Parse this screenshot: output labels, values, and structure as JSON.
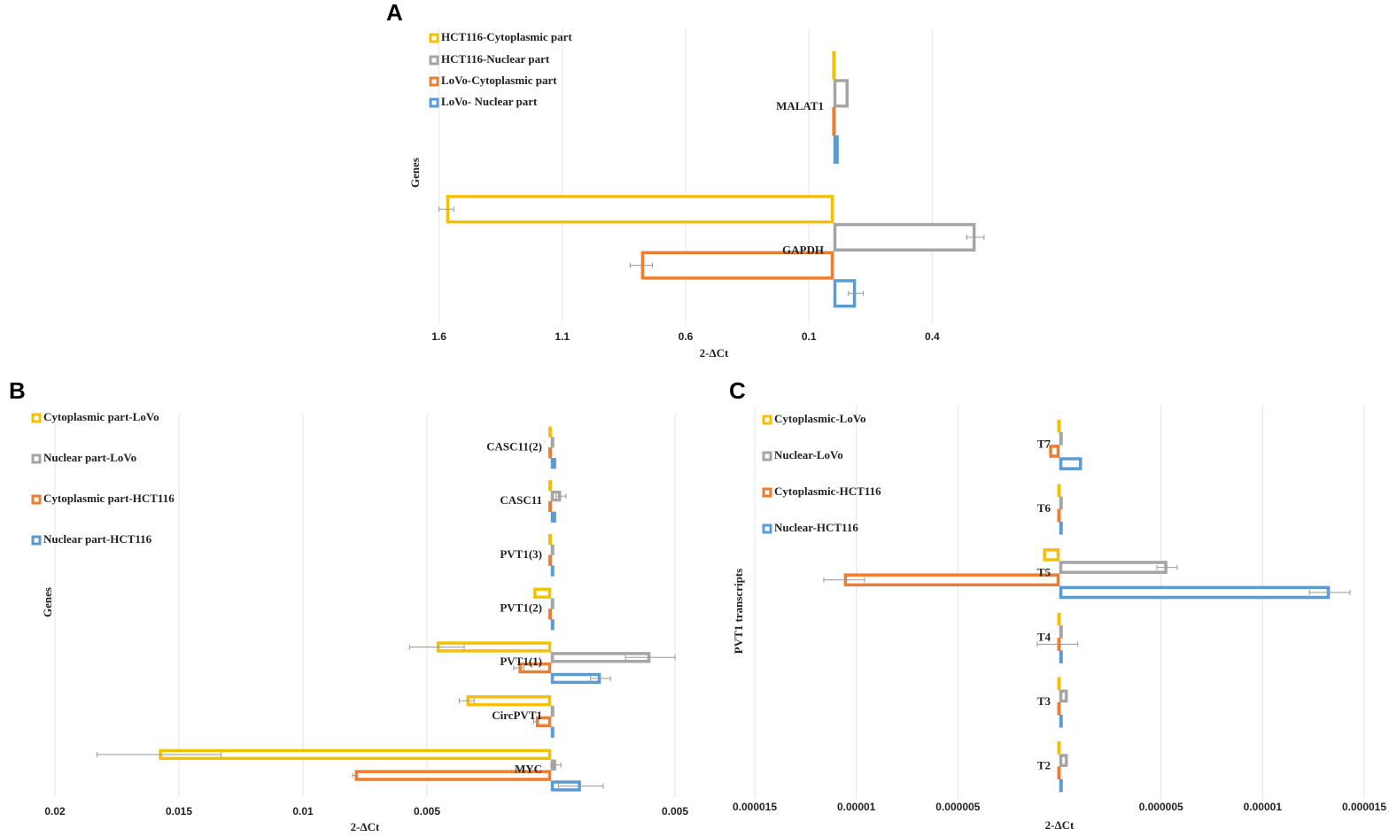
{
  "chart_data": [
    {
      "type": "hbar",
      "panel": "A",
      "xlabel": "2-ΔCt",
      "ylabel": "Genes",
      "grid": true,
      "categories": [
        "MALAT1",
        "GAPDH"
      ],
      "xlim": [
        -1.62,
        0.65
      ],
      "xticks": [
        {
          "value": -1.6,
          "label": "1.6"
        },
        {
          "value": -1.1,
          "label": "1.1"
        },
        {
          "value": -0.6,
          "label": "0.6"
        },
        {
          "value": -0.1,
          "label": "0.1"
        },
        0.4
      ],
      "series": [
        {
          "name": "HCT116-Cytoplasmic part",
          "color": "#f5c000",
          "values": [
            -0.005,
            -1.57
          ],
          "errors": [
            0,
            0.03
          ]
        },
        {
          "name": "HCT116-Nuclear part",
          "color": "#a5a5a5",
          "values": [
            0.06,
            0.575
          ],
          "errors": [
            0,
            0.035
          ]
        },
        {
          "name": "LoVo-Cytoplasmic part",
          "color": "#ed7d31",
          "values": [
            -0.005,
            -0.78
          ],
          "errors": [
            0,
            0.045
          ]
        },
        {
          "name": "LoVo- Nuclear part",
          "color": "#5b9bd5",
          "values": [
            0.02,
            0.09
          ],
          "errors": [
            0,
            0.03
          ]
        }
      ]
    },
    {
      "type": "hbar",
      "panel": "B",
      "xlabel": "2-ΔCt",
      "ylabel": "Genes",
      "grid": true,
      "categories": [
        "CASC11(2)",
        "CASC11",
        "PVT1(3)",
        "PVT1(2)",
        "PVT1(1)",
        "CircPVT1",
        "MYC"
      ],
      "xlim": [
        -0.02,
        0.005
      ],
      "xticks": [
        {
          "value": -0.02,
          "label": "0.02"
        },
        {
          "value": -0.015,
          "label": "0.015"
        },
        {
          "value": -0.01,
          "label": "0.01"
        },
        {
          "value": -0.005,
          "label": "0.005"
        },
        0.005
      ],
      "series": [
        {
          "name": "Cytoplasmic part-LoVo",
          "color": "#f5c000",
          "values": [
            -0.0001,
            -0.0001,
            -0.0001,
            -0.0007,
            -0.0046,
            -0.0034,
            -0.0158
          ],
          "errors": [
            0,
            0,
            0,
            0,
            0.0011,
            0.0003,
            0.0025
          ]
        },
        {
          "name": "Nuclear part-LoVo",
          "color": "#a5a5a5",
          "values": [
            0.0001,
            0.0004,
            0.0001,
            0.0001,
            0.004,
            0.0001,
            0.0002
          ],
          "errors": [
            0,
            0.0002,
            0,
            0,
            0.001,
            0,
            0.0002
          ]
        },
        {
          "name": "Cytoplasmic part-HCT116",
          "color": "#ed7d31",
          "values": [
            -0.0001,
            -0.0001,
            -0.0001,
            -0.0001,
            -0.0013,
            -0.0006,
            -0.0079
          ],
          "errors": [
            0,
            0,
            0,
            0,
            0.0002,
            0.0001,
            0.0001
          ]
        },
        {
          "name": "Nuclear part-HCT116",
          "color": "#5b9bd5",
          "values": [
            0.0002,
            0.0002,
            0.0001,
            0.0001,
            0.002,
            0.0001,
            0.0012
          ],
          "errors": [
            0,
            0,
            0,
            0,
            0.0004,
            0,
            0.0009
          ]
        }
      ]
    },
    {
      "type": "hbar",
      "panel": "C",
      "xlabel": "2-ΔCt",
      "ylabel": "PVT1 transcripts",
      "grid": true,
      "categories": [
        "T7",
        "T6",
        "T5",
        "T4",
        "T3",
        "T2"
      ],
      "xlim": [
        -1.5e-05,
        1.5e-05
      ],
      "xticks": [
        {
          "value": -1.5e-05,
          "label": "0.000015"
        },
        {
          "value": -1e-05,
          "label": "0.00001"
        },
        {
          "value": -5e-06,
          "label": "0.000005"
        },
        {
          "value": 5e-06,
          "label": "0.000005"
        },
        {
          "value": 1e-05,
          "label": "0.00001"
        },
        {
          "value": 1.5e-05,
          "label": "0.000015"
        }
      ],
      "series": [
        {
          "name": "Cytoplasmic-LoVo",
          "color": "#f5c000",
          "values": [
            -1e-07,
            -1e-07,
            -8e-07,
            -1e-07,
            -1e-07,
            -1e-07
          ],
          "errors": [
            0,
            0,
            0,
            0,
            0,
            0
          ]
        },
        {
          "name": "Nuclear-LoVo",
          "color": "#a5a5a5",
          "values": [
            1e-07,
            1e-07,
            5.3e-06,
            1e-07,
            4e-07,
            4e-07
          ],
          "errors": [
            0,
            0,
            5e-07,
            0,
            0,
            0
          ]
        },
        {
          "name": "Cytoplasmic-HCT116",
          "color": "#ed7d31",
          "values": [
            -5e-07,
            -1e-07,
            -1.06e-05,
            -1e-07,
            -1e-07,
            -1e-07
          ],
          "errors": [
            0,
            0,
            1e-06,
            1e-06,
            0,
            0
          ]
        },
        {
          "name": "Nuclear-HCT116",
          "color": "#5b9bd5",
          "values": [
            1.1e-06,
            1e-07,
            1.33e-05,
            1e-07,
            1e-07,
            1e-07
          ],
          "errors": [
            0,
            0,
            1e-06,
            0,
            0,
            0
          ]
        }
      ]
    }
  ]
}
